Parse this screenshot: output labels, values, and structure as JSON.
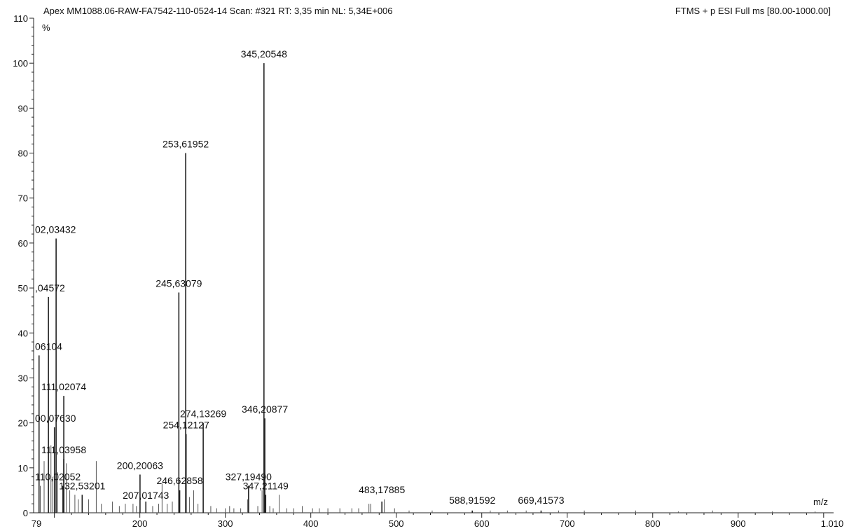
{
  "header": {
    "left": "Apex MM1088.06-RAW-FA7542-110-0524-14 Scan: #321  RT: 3,35 min NL: 5,34E+006",
    "right": "FTMS + p ESI Full ms [80.00-1000.00]"
  },
  "chart_data": {
    "type": "bar",
    "title": "",
    "xlabel": "m/z",
    "ylabel": "%",
    "xlim": [
      79,
      1010
    ],
    "ylim": [
      0,
      110
    ],
    "x_ticks": [
      {
        "value": 79,
        "label": "79"
      },
      {
        "value": 200,
        "label": "200"
      },
      {
        "value": 300,
        "label": "300"
      },
      {
        "value": 400,
        "label": "400"
      },
      {
        "value": 500,
        "label": "500"
      },
      {
        "value": 600,
        "label": "600"
      },
      {
        "value": 700,
        "label": "700"
      },
      {
        "value": 800,
        "label": "800"
      },
      {
        "value": 900,
        "label": "900"
      },
      {
        "value": 1010,
        "label": "1.010"
      }
    ],
    "y_ticks": [
      0,
      10,
      20,
      30,
      40,
      50,
      60,
      70,
      80,
      90,
      100,
      110
    ],
    "labeled_peaks": [
      {
        "mz": 345.20548,
        "intensity": 100,
        "label": "345,20548"
      },
      {
        "mz": 253.61952,
        "intensity": 80,
        "label": "253,61952"
      },
      {
        "mz": 102.03432,
        "intensity": 61,
        "label": "02,03432"
      },
      {
        "mz": 245.63079,
        "intensity": 49,
        "label": "245,63079"
      },
      {
        "mz": 93.04572,
        "intensity": 48,
        "label": ",04572"
      },
      {
        "mz": 82.06104,
        "intensity": 35,
        "label": "06104"
      },
      {
        "mz": 111.02074,
        "intensity": 26,
        "label": "111,02074"
      },
      {
        "mz": 254.12127,
        "intensity": 17.5,
        "label": "254,12127"
      },
      {
        "mz": 274.13269,
        "intensity": 20,
        "label": "274,13269"
      },
      {
        "mz": 346.20877,
        "intensity": 21,
        "label": "346,20877"
      },
      {
        "mz": 100.0763,
        "intensity": 19,
        "label": "00,07630"
      },
      {
        "mz": 111.03958,
        "intensity": 12,
        "label": "111,03958"
      },
      {
        "mz": 200.20063,
        "intensity": 8.5,
        "label": "200,20063"
      },
      {
        "mz": 327.1949,
        "intensity": 6,
        "label": "327,19490"
      },
      {
        "mz": 110.02052,
        "intensity": 6,
        "label": "110,02052"
      },
      {
        "mz": 246.62858,
        "intensity": 5,
        "label": "246,62858"
      },
      {
        "mz": 132.53201,
        "intensity": 4,
        "label": "132,53201"
      },
      {
        "mz": 207.01743,
        "intensity": 2.5,
        "label": "207,01743"
      },
      {
        "mz": 347.21149,
        "intensity": 4,
        "label": "347,21149"
      },
      {
        "mz": 483.17885,
        "intensity": 2.5,
        "label": "483,17885"
      },
      {
        "mz": 588.91592,
        "intensity": 0.5,
        "label": "588,91592"
      },
      {
        "mz": 669.41573,
        "intensity": 0.5,
        "label": "669,41573"
      }
    ],
    "minor_peaks": [
      {
        "mz": 83.5,
        "intensity": 6
      },
      {
        "mz": 88,
        "intensity": 11.5
      },
      {
        "mz": 96,
        "intensity": 15
      },
      {
        "mz": 98,
        "intensity": 8
      },
      {
        "mz": 104,
        "intensity": 9
      },
      {
        "mz": 114,
        "intensity": 11
      },
      {
        "mz": 118,
        "intensity": 5
      },
      {
        "mz": 124,
        "intensity": 4
      },
      {
        "mz": 128,
        "intensity": 3
      },
      {
        "mz": 140,
        "intensity": 3
      },
      {
        "mz": 149,
        "intensity": 11.5
      },
      {
        "mz": 155,
        "intensity": 2
      },
      {
        "mz": 168,
        "intensity": 2.5
      },
      {
        "mz": 176,
        "intensity": 1.5
      },
      {
        "mz": 183,
        "intensity": 2
      },
      {
        "mz": 192,
        "intensity": 2
      },
      {
        "mz": 196,
        "intensity": 1.5
      },
      {
        "mz": 215,
        "intensity": 1.5
      },
      {
        "mz": 222,
        "intensity": 2
      },
      {
        "mz": 226,
        "intensity": 6.5
      },
      {
        "mz": 232,
        "intensity": 2
      },
      {
        "mz": 238,
        "intensity": 2.5
      },
      {
        "mz": 258,
        "intensity": 3.5
      },
      {
        "mz": 263,
        "intensity": 5
      },
      {
        "mz": 268,
        "intensity": 2
      },
      {
        "mz": 283,
        "intensity": 1.5
      },
      {
        "mz": 290,
        "intensity": 1
      },
      {
        "mz": 300,
        "intensity": 1
      },
      {
        "mz": 305,
        "intensity": 1.5
      },
      {
        "mz": 310,
        "intensity": 1
      },
      {
        "mz": 318,
        "intensity": 1
      },
      {
        "mz": 326,
        "intensity": 3
      },
      {
        "mz": 338,
        "intensity": 1.5
      },
      {
        "mz": 343,
        "intensity": 5
      },
      {
        "mz": 352,
        "intensity": 1.5
      },
      {
        "mz": 356,
        "intensity": 1
      },
      {
        "mz": 363,
        "intensity": 4
      },
      {
        "mz": 372,
        "intensity": 1
      },
      {
        "mz": 380,
        "intensity": 1
      },
      {
        "mz": 390,
        "intensity": 1.5
      },
      {
        "mz": 402,
        "intensity": 1
      },
      {
        "mz": 410,
        "intensity": 1
      },
      {
        "mz": 420,
        "intensity": 1
      },
      {
        "mz": 434,
        "intensity": 1
      },
      {
        "mz": 448,
        "intensity": 1
      },
      {
        "mz": 456,
        "intensity": 1
      },
      {
        "mz": 468,
        "intensity": 2
      },
      {
        "mz": 470,
        "intensity": 2
      },
      {
        "mz": 486,
        "intensity": 3
      },
      {
        "mz": 498,
        "intensity": 1
      },
      {
        "mz": 515,
        "intensity": 0.5
      },
      {
        "mz": 542,
        "intensity": 0.5
      },
      {
        "mz": 610,
        "intensity": 0.5
      },
      {
        "mz": 630,
        "intensity": 0.5
      },
      {
        "mz": 652,
        "intensity": 0.5
      },
      {
        "mz": 690,
        "intensity": 0.5
      },
      {
        "mz": 720,
        "intensity": 0.5
      },
      {
        "mz": 780,
        "intensity": 0.5
      },
      {
        "mz": 830,
        "intensity": 0.3
      },
      {
        "mz": 870,
        "intensity": 0.5
      },
      {
        "mz": 940,
        "intensity": 0.3
      },
      {
        "mz": 990,
        "intensity": 0.3
      }
    ]
  }
}
